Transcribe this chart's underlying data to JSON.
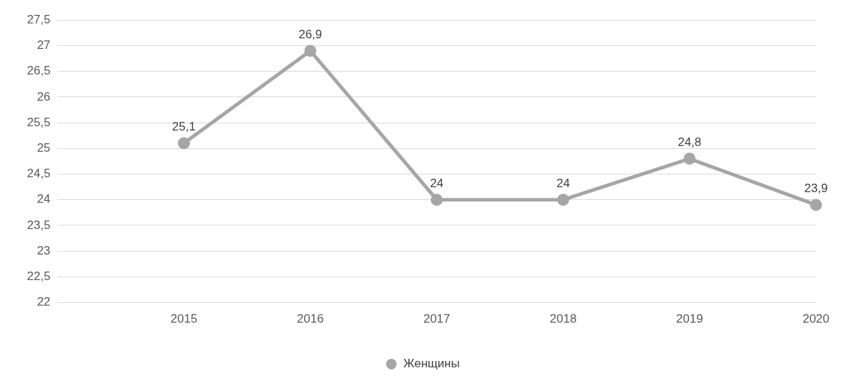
{
  "chart_data": {
    "type": "line",
    "categories": [
      null,
      "2015",
      "2016",
      "2017",
      "2018",
      "2019",
      "2020"
    ],
    "series": [
      {
        "name": "Женщины",
        "color": "#a6a6a6",
        "values": [
          null,
          25.1,
          26.9,
          24,
          24,
          24.8,
          23.9
        ],
        "value_labels": [
          null,
          "25,1",
          "26,9",
          "24",
          "24",
          "24,8",
          "23,9"
        ]
      }
    ],
    "ylim": [
      22,
      27.5
    ],
    "yticks": [
      22,
      {
        "value": 22.5,
        "label": "22,5"
      },
      23,
      {
        "value": 23.5,
        "label": "23,5"
      },
      24,
      {
        "value": 24.5,
        "label": "24,5"
      },
      25,
      {
        "value": 25.5,
        "label": "25,5"
      },
      26,
      {
        "value": 26.5,
        "label": "26,5"
      },
      27,
      {
        "value": 27.5,
        "label": "27,5"
      }
    ],
    "grid": "y",
    "legend": "bottom",
    "marker": "circle",
    "line_style": "solid"
  }
}
